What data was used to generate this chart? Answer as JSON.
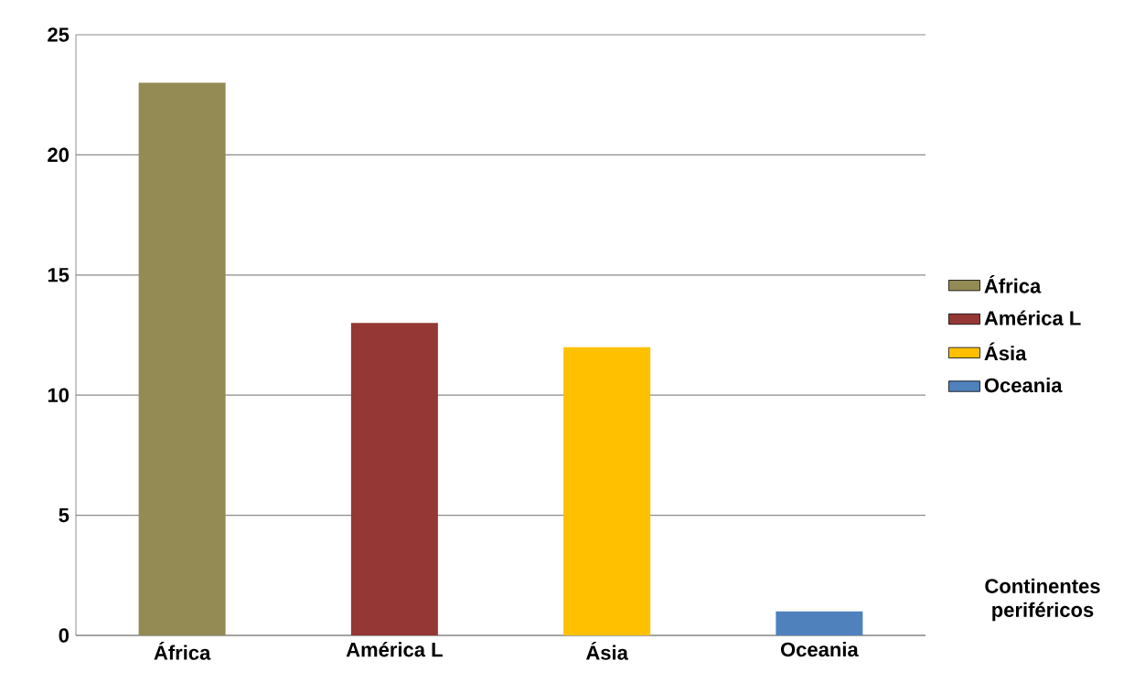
{
  "chart_data": {
    "type": "bar",
    "categories": [
      "África",
      "América L",
      "Ásia",
      "Oceania"
    ],
    "series": [
      {
        "name": "África",
        "color": "#948a54",
        "values": [
          23,
          null,
          null,
          null
        ]
      },
      {
        "name": "América L",
        "color": "#953735",
        "values": [
          null,
          13,
          null,
          null
        ]
      },
      {
        "name": "Ásia",
        "color": "#ffc000",
        "values": [
          null,
          null,
          12,
          null
        ]
      },
      {
        "name": "Oceania",
        "color": "#4f81bd",
        "values": [
          null,
          null,
          null,
          1
        ]
      }
    ],
    "ylim": [
      0,
      25
    ],
    "yticks": [
      0,
      5,
      10,
      15,
      20,
      25
    ],
    "grid": "y",
    "legend": "right",
    "annotations": [
      "Continentes periféricos"
    ]
  }
}
